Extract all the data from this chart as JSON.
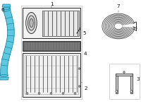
{
  "background_color": "#ffffff",
  "cyan_fill": "#5ec8e0",
  "cyan_edge": "#1a8aaa",
  "dark": "#333333",
  "gray": "#777777",
  "light_gray": "#cccccc",
  "mid_gray": "#aaaaaa",
  "filter_dark": "#666666",
  "figsize": [
    2.0,
    1.47
  ],
  "dpi": 100,
  "xlim": [
    0,
    2.0
  ],
  "ylim": [
    0,
    1.47
  ],
  "label_fs": 5.2,
  "parts": [
    "1",
    "2",
    "3",
    "4",
    "5",
    "6",
    "7"
  ]
}
